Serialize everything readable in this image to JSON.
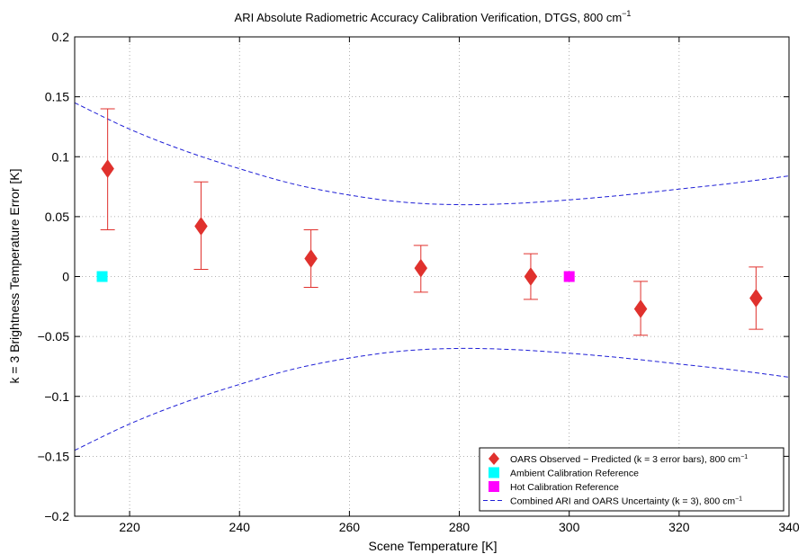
{
  "chart_data": {
    "type": "scatter",
    "title": "ARI Absolute Radiometric Accuracy Calibration Verification, DTGS, 800 cm",
    "title_superscript": "−1",
    "xlabel": "Scene Temperature [K]",
    "ylabel": "k = 3 Brightness Temperature Error [K]",
    "xlim": [
      210,
      340
    ],
    "ylim": [
      -0.2,
      0.2
    ],
    "xticks": [
      220,
      240,
      260,
      280,
      300,
      320,
      340
    ],
    "xtick_labels": [
      "220",
      "240",
      "260",
      "280",
      "300",
      "320",
      "340"
    ],
    "yticks": [
      -0.2,
      -0.15,
      -0.1,
      -0.05,
      0,
      0.05,
      0.1,
      0.15,
      0.2
    ],
    "ytick_labels": [
      "−0.2",
      "−0.15",
      "−0.1",
      "−0.05",
      "0",
      "0.05",
      "0.1",
      "0.15",
      "0.2"
    ],
    "grid": true,
    "legend_position": "bottom-right",
    "colors": {
      "observed": "#e0312d",
      "ambient": "#00ffff",
      "hot": "#ff00ff",
      "uncertainty": "#1f1fd6"
    },
    "observed": {
      "x": [
        216,
        233,
        253,
        273,
        293,
        313,
        334
      ],
      "y": [
        0.09,
        0.042,
        0.015,
        0.007,
        0.0,
        -0.027,
        -0.018
      ],
      "err_low": [
        0.039,
        0.006,
        -0.009,
        -0.013,
        -0.019,
        -0.049,
        -0.044
      ],
      "err_high": [
        0.14,
        0.079,
        0.039,
        0.026,
        0.019,
        -0.004,
        0.008
      ]
    },
    "ambient_reference": {
      "x": [
        215
      ],
      "y": [
        0
      ]
    },
    "hot_reference": {
      "x": [
        300
      ],
      "y": [
        0
      ]
    },
    "uncertainty_band": {
      "x": [
        210,
        220,
        230,
        240,
        250,
        260,
        270,
        280,
        290,
        300,
        310,
        320,
        330,
        340
      ],
      "y_upper": [
        0.145,
        0.123,
        0.105,
        0.09,
        0.077,
        0.068,
        0.062,
        0.06,
        0.061,
        0.064,
        0.068,
        0.073,
        0.078,
        0.084
      ],
      "y_lower": [
        -0.145,
        -0.123,
        -0.105,
        -0.09,
        -0.077,
        -0.068,
        -0.062,
        -0.06,
        -0.061,
        -0.064,
        -0.068,
        -0.073,
        -0.078,
        -0.084
      ]
    },
    "legend": [
      {
        "key": "observed",
        "label": "OARS Observed − Predicted (k = 3 error bars), 800 cm",
        "sup": "−1"
      },
      {
        "key": "ambient",
        "label": "Ambient Calibration Reference",
        "sup": ""
      },
      {
        "key": "hot",
        "label": "Hot Calibration Reference",
        "sup": ""
      },
      {
        "key": "uncertainty",
        "label": "Combined ARI and OARS Uncertainty (k = 3), 800 cm",
        "sup": "−1"
      }
    ]
  }
}
